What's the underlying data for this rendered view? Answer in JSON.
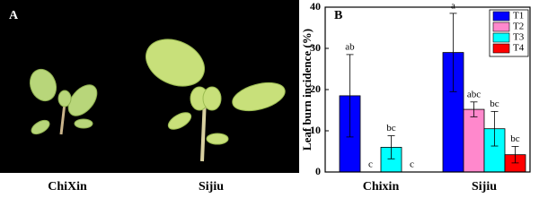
{
  "panel_a": {
    "label": "A",
    "captions": [
      "ChiXin",
      "Sijiu"
    ]
  },
  "chart_data": {
    "type": "bar",
    "panel_label": "B",
    "y_label": "Leaf burn incidence (%)",
    "categories": [
      "Chixin",
      "Sijiu"
    ],
    "series": [
      {
        "name": "T1",
        "color": "#0000ff",
        "values": [
          18.5,
          29
        ],
        "errors": [
          10,
          9.5
        ],
        "letters": [
          "ab",
          "a"
        ]
      },
      {
        "name": "T2",
        "color": "#ff88cc",
        "values": [
          0,
          15.2
        ],
        "errors": [
          null,
          1.8
        ],
        "letters": [
          "c",
          "abc"
        ]
      },
      {
        "name": "T3",
        "color": "#00ffff",
        "values": [
          6,
          10.5
        ],
        "errors": [
          2.8,
          4.2
        ],
        "letters": [
          "bc",
          "bc"
        ]
      },
      {
        "name": "T4",
        "color": "#ff0000",
        "values": [
          0,
          4.2
        ],
        "errors": [
          null,
          2
        ],
        "letters": [
          "c",
          "bc"
        ]
      }
    ],
    "ylim": [
      0,
      40
    ],
    "yticks": [
      0,
      10,
      20,
      30,
      40
    ],
    "legend": "top-right"
  }
}
